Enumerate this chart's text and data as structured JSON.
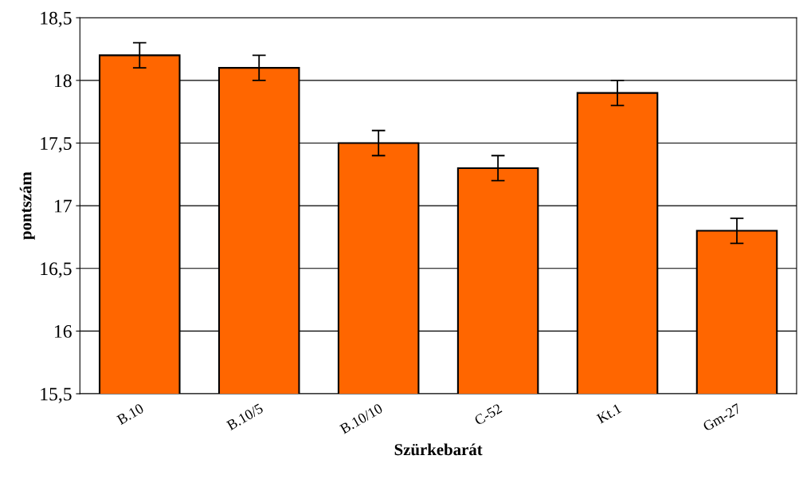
{
  "chart_data": {
    "type": "bar",
    "xlabel": "Szürkebarát",
    "ylabel": "pontszám",
    "categories": [
      "B.10",
      "B.10/5",
      "B.10/10",
      "C-52",
      "Kt.1",
      "Gm-27"
    ],
    "values": [
      18.2,
      18.1,
      17.5,
      17.3,
      17.9,
      16.8
    ],
    "errors": [
      0.1,
      0.1,
      0.1,
      0.1,
      0.1,
      0.1
    ],
    "color": "#ff6600",
    "ylim": [
      15.5,
      18.5
    ],
    "yticks": [
      {
        "value": 15.5,
        "label": "15,5"
      },
      16,
      {
        "value": 16.5,
        "label": "16,5"
      },
      17,
      {
        "value": 17.5,
        "label": "17,5"
      },
      18,
      {
        "value": 18.5,
        "label": "18,5"
      }
    ],
    "grid": "y",
    "legend": false
  }
}
